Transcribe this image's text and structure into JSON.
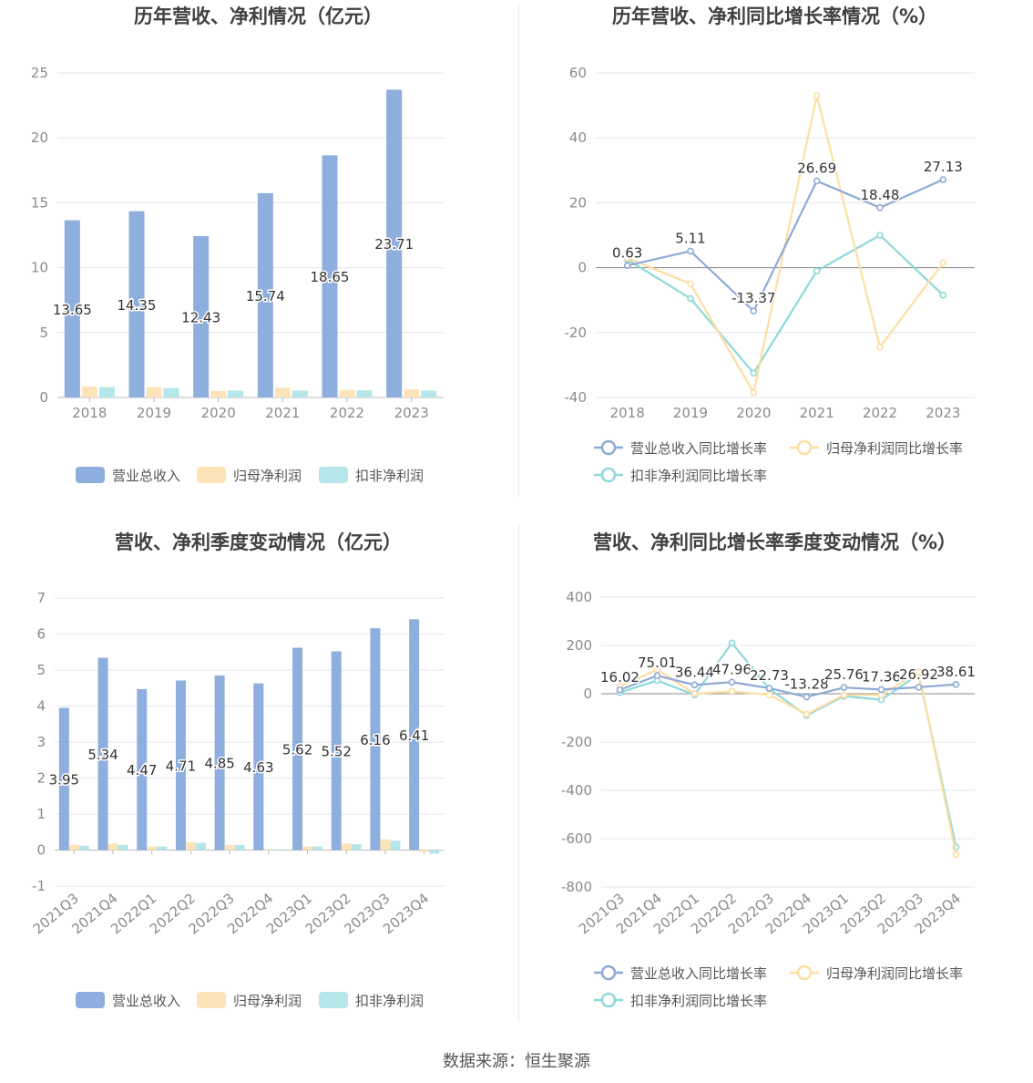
{
  "source": "数据来源：恒生聚源",
  "colors": {
    "revenue": "#8eaedd",
    "net_profit": "#fde3b8",
    "deducted_profit": "#b5e6e9",
    "line_revenue": "#8eaad6",
    "line_net": "#fddea3",
    "line_deducted": "#8fd8da"
  },
  "chart_data": [
    {
      "id": "annual_values",
      "type": "bar",
      "title": "历年营收、净利情况（亿元）",
      "categories": [
        "2018",
        "2019",
        "2020",
        "2021",
        "2022",
        "2023"
      ],
      "ylim": [
        0,
        25
      ],
      "yticks": [
        "0",
        "5",
        "10",
        "15",
        "20",
        "25"
      ],
      "series": [
        {
          "name": "营业总收入",
          "values": [
            13.65,
            14.35,
            12.43,
            15.74,
            18.65,
            23.71
          ],
          "labels": [
            "13.65",
            "14.35",
            "12.43",
            "15.74",
            "18.65",
            "23.71"
          ]
        },
        {
          "name": "归母净利润",
          "values": [
            0.85,
            0.8,
            0.5,
            0.75,
            0.58,
            0.62
          ]
        },
        {
          "name": "扣非净利润",
          "values": [
            0.8,
            0.72,
            0.52,
            0.52,
            0.55,
            0.52
          ]
        }
      ],
      "legend": "bottom"
    },
    {
      "id": "annual_growth",
      "type": "line",
      "title": "历年营收、净利同比增长率情况（%）",
      "categories": [
        "2018",
        "2019",
        "2020",
        "2021",
        "2022",
        "2023"
      ],
      "ylim": [
        -40,
        60
      ],
      "yticks": [
        "-40",
        "-20",
        "0",
        "20",
        "40",
        "60"
      ],
      "series": [
        {
          "name": "营业总收入同比增长率",
          "values": [
            0.63,
            5.11,
            -13.37,
            26.69,
            18.48,
            27.13
          ],
          "labels": [
            "0.63",
            "5.11",
            "-13.37",
            "26.69",
            "18.48",
            "27.13"
          ]
        },
        {
          "name": "归母净利润同比增长率",
          "values": [
            3,
            -5,
            -38.5,
            53,
            -24.5,
            1.5
          ]
        },
        {
          "name": "扣非净利润同比增长率",
          "values": [
            2.5,
            -9.5,
            -32.5,
            -1,
            10,
            -8.5
          ]
        }
      ],
      "legend": "bottom"
    },
    {
      "id": "quarterly_values",
      "type": "bar",
      "title": "营收、净利季度变动情况（亿元）",
      "categories": [
        "2021Q3",
        "2021Q4",
        "2022Q1",
        "2022Q2",
        "2022Q3",
        "2022Q4",
        "2023Q1",
        "2023Q2",
        "2023Q3",
        "2023Q4"
      ],
      "ylim": [
        -1,
        7
      ],
      "yticks": [
        "-1",
        "0",
        "1",
        "2",
        "3",
        "4",
        "5",
        "6",
        "7"
      ],
      "series": [
        {
          "name": "营业总收入",
          "values": [
            3.95,
            5.34,
            4.47,
            4.71,
            4.85,
            4.63,
            5.62,
            5.52,
            6.16,
            6.41
          ],
          "labels": [
            "3.95",
            "5.34",
            "4.47",
            "4.71",
            "4.85",
            "4.63",
            "5.62",
            "5.52",
            "6.16",
            "6.41"
          ]
        },
        {
          "name": "归母净利润",
          "values": [
            0.15,
            0.18,
            0.1,
            0.22,
            0.14,
            0.03,
            0.1,
            0.18,
            0.3,
            -0.05
          ]
        },
        {
          "name": "扣非净利润",
          "values": [
            0.12,
            0.14,
            0.1,
            0.2,
            0.14,
            0.02,
            0.1,
            0.16,
            0.26,
            -0.1
          ]
        }
      ],
      "legend": "bottom"
    },
    {
      "id": "quarterly_growth",
      "type": "line",
      "title": "营收、净利同比增长率季度变动情况（%）",
      "categories": [
        "2021Q3",
        "2021Q4",
        "2022Q1",
        "2022Q2",
        "2022Q3",
        "2022Q4",
        "2023Q1",
        "2023Q2",
        "2023Q3",
        "2023Q4"
      ],
      "ylim": [
        -800,
        400
      ],
      "yticks": [
        "-800",
        "-600",
        "-400",
        "-200",
        "0",
        "200",
        "400"
      ],
      "series": [
        {
          "name": "营业总收入同比增长率",
          "values": [
            16.02,
            75.01,
            36.44,
            47.96,
            22.73,
            -13.28,
            25.76,
            17.36,
            26.92,
            38.61
          ],
          "labels": [
            "16.02",
            "75.01",
            "36.44",
            "47.96",
            "22.73",
            "-13.28",
            "25.76",
            "17.36",
            "26.92",
            "38.61"
          ]
        },
        {
          "name": "归母净利润同比增长率",
          "values": [
            30,
            100,
            0,
            10,
            -5,
            -85,
            -5,
            -5,
            90,
            -665
          ]
        },
        {
          "name": "扣非净利润同比增长率",
          "values": [
            5,
            55,
            -5,
            210,
            20,
            -90,
            -10,
            -25,
            80,
            -635
          ]
        }
      ],
      "legend": "bottom"
    }
  ]
}
